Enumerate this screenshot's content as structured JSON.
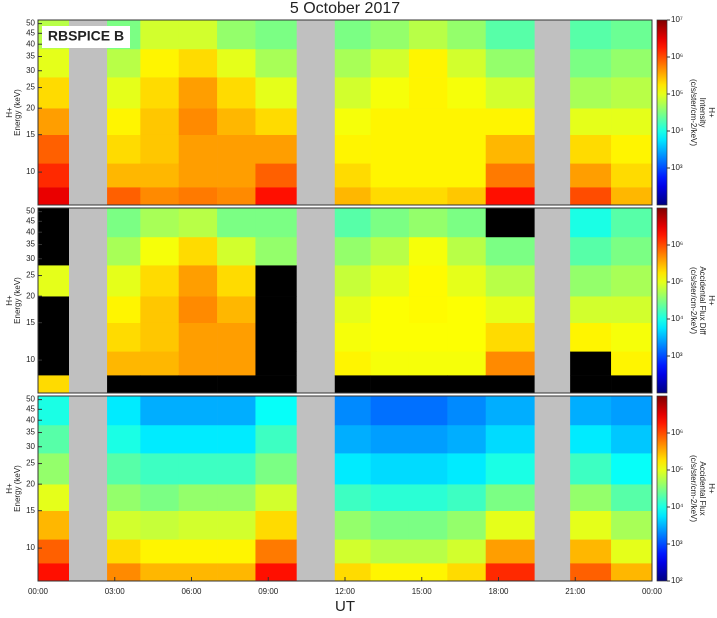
{
  "title": "5 October 2017",
  "label": "RBSPICE B",
  "chart_data": [
    {
      "type": "heatmap",
      "x": [
        0,
        1.2,
        2.7,
        4,
        5.5,
        7,
        8.5,
        10.1,
        11.6,
        13,
        14.5,
        16,
        17.5,
        19.4,
        20.8,
        22.4,
        24
      ],
      "y": [
        7,
        8.5,
        11,
        15,
        20,
        28,
        38,
        52
      ],
      "values": [
        [
          3000000.0,
          1500000.0,
          800000.0,
          400000.0,
          200000.0,
          100000.0,
          60000.0
        ],
        [
          null,
          null,
          null,
          null,
          null,
          null,
          null
        ],
        [
          800000.0,
          300000.0,
          200000.0,
          150000.0,
          100000.0,
          60000.0,
          30000.0
        ],
        [
          500000.0,
          300000.0,
          250000.0,
          250000.0,
          200000.0,
          150000.0,
          80000.0
        ],
        [
          600000.0,
          400000.0,
          400000.0,
          500000.0,
          400000.0,
          200000.0,
          80000.0
        ],
        [
          500000.0,
          400000.0,
          400000.0,
          300000.0,
          200000.0,
          100000.0,
          40000.0
        ],
        [
          2000000.0,
          800000.0,
          400000.0,
          200000.0,
          100000.0,
          50000.0,
          30000.0
        ],
        [
          null,
          null,
          null,
          null,
          null,
          null,
          null
        ],
        [
          300000.0,
          200000.0,
          150000.0,
          120000.0,
          80000.0,
          50000.0,
          30000.0
        ],
        [
          200000.0,
          150000.0,
          150000.0,
          150000.0,
          120000.0,
          80000.0,
          40000.0
        ],
        [
          200000.0,
          150000.0,
          150000.0,
          150000.0,
          150000.0,
          150000.0,
          60000.0
        ],
        [
          250000.0,
          150000.0,
          150000.0,
          150000.0,
          120000.0,
          80000.0,
          40000.0
        ],
        [
          2000000.0,
          600000.0,
          300000.0,
          150000.0,
          80000.0,
          40000.0,
          20000.0
        ],
        [
          null,
          null,
          null,
          null,
          null,
          null,
          null
        ],
        [
          1000000.0,
          400000.0,
          200000.0,
          100000.0,
          50000.0,
          30000.0,
          20000.0
        ],
        [
          300000.0,
          200000.0,
          150000.0,
          100000.0,
          60000.0,
          40000.0,
          25000.0
        ]
      ],
      "xlim": [
        0,
        24
      ],
      "ylim": [
        7,
        52
      ],
      "ylog": true,
      "yticks": [
        10,
        15,
        20,
        25,
        30,
        35,
        40,
        45,
        50
      ],
      "clim": [
        100,
        10000000
      ],
      "clog": true,
      "cticks": [
        {
          "value": 1000,
          "label": "10³"
        },
        {
          "value": 10000,
          "label": "10⁴"
        },
        {
          "value": 100000,
          "label": "10⁵"
        },
        {
          "value": 1000000,
          "label": "10⁶"
        },
        {
          "value": 10000000,
          "label": "10⁷"
        }
      ],
      "ylabel": [
        "H+",
        "Energy (keV)"
      ],
      "clabel": [
        "H+",
        "Intensity",
        "(c/s/ster/cm-2/keV)"
      ]
    },
    {
      "type": "heatmap",
      "x": [
        0,
        1.2,
        2.7,
        4,
        5.5,
        7,
        8.5,
        10.1,
        11.6,
        13,
        14.5,
        16,
        17.5,
        19.4,
        20.8,
        22.4,
        24
      ],
      "y": [
        7,
        8.5,
        11,
        15,
        20,
        28,
        38,
        52
      ],
      "values": [
        [
          200000.0,
          50,
          50,
          50,
          100000.0,
          50,
          50
        ],
        [
          null,
          null,
          null,
          null,
          null,
          null,
          null
        ],
        [
          50,
          300000.0,
          200000.0,
          150000.0,
          100000.0,
          50000.0,
          30000.0
        ],
        [
          50,
          300000.0,
          250000.0,
          250000.0,
          200000.0,
          120000.0,
          50000.0
        ],
        [
          50,
          400000.0,
          400000.0,
          500000.0,
          400000.0,
          200000.0,
          60000.0
        ],
        [
          50,
          400000.0,
          400000.0,
          300000.0,
          200000.0,
          80000.0,
          30000.0
        ],
        [
          50,
          50,
          50,
          50,
          50,
          40000.0,
          30000.0
        ],
        [
          null,
          null,
          null,
          null,
          null,
          null,
          null
        ],
        [
          50,
          150000.0,
          120000.0,
          100000.0,
          70000.0,
          40000.0,
          20000.0
        ],
        [
          50,
          120000.0,
          130000.0,
          130000.0,
          100000.0,
          60000.0,
          30000.0
        ],
        [
          50,
          120000.0,
          130000.0,
          140000.0,
          140000.0,
          120000.0,
          40000.0
        ],
        [
          50,
          120000.0,
          130000.0,
          130000.0,
          100000.0,
          60000.0,
          30000.0
        ],
        [
          50,
          500000.0,
          200000.0,
          100000.0,
          60000.0,
          30000.0,
          50
        ],
        [
          null,
          null,
          null,
          null,
          null,
          null,
          null
        ],
        [
          50,
          50,
          150000.0,
          80000.0,
          40000.0,
          20000.0,
          10000.0
        ],
        [
          50,
          150000.0,
          120000.0,
          80000.0,
          50000.0,
          30000.0,
          20000.0
        ]
      ],
      "xlim": [
        0,
        24
      ],
      "ylim": [
        7,
        52
      ],
      "ylog": true,
      "yticks": [
        10,
        15,
        20,
        25,
        30,
        35,
        40,
        45,
        50
      ],
      "clim": [
        100,
        10000000
      ],
      "clog": true,
      "cticks": [
        {
          "value": 1000,
          "label": "10³"
        },
        {
          "value": 10000,
          "label": "10⁴"
        },
        {
          "value": 100000,
          "label": "10⁵"
        },
        {
          "value": 1000000,
          "label": "10⁶"
        }
      ],
      "ylabel": [
        "H+",
        "Energy (keV)"
      ],
      "clabel": [
        "H+",
        "Accidental Flux Diff",
        "(c/s/ster/cm-2/keV)"
      ]
    },
    {
      "type": "heatmap",
      "x": [
        0,
        1.2,
        2.7,
        4,
        5.5,
        7,
        8.5,
        10.1,
        11.6,
        13,
        14.5,
        16,
        17.5,
        19.4,
        20.8,
        22.4,
        24
      ],
      "y": [
        7,
        8.5,
        11,
        15,
        20,
        28,
        38,
        52
      ],
      "values": [
        [
          2000000.0,
          800000.0,
          300000.0,
          100000.0,
          40000.0,
          20000.0,
          10000.0
        ],
        [
          null,
          null,
          null,
          null,
          null,
          null,
          null
        ],
        [
          500000.0,
          200000.0,
          80000.0,
          40000.0,
          20000.0,
          10000.0,
          6000.0
        ],
        [
          300000.0,
          150000.0,
          70000.0,
          30000.0,
          15000.0,
          6000.0,
          3000.0
        ],
        [
          300000.0,
          150000.0,
          80000.0,
          40000.0,
          15000.0,
          6000.0,
          3000.0
        ],
        [
          300000.0,
          150000.0,
          80000.0,
          40000.0,
          15000.0,
          6000.0,
          3000.0
        ],
        [
          2000000.0,
          600000.0,
          200000.0,
          80000.0,
          30000.0,
          15000.0,
          8000.0
        ],
        [
          null,
          null,
          null,
          null,
          null,
          null,
          null
        ],
        [
          200000.0,
          80000.0,
          40000.0,
          15000.0,
          6000.0,
          3000.0,
          2000.0
        ],
        [
          150000.0,
          60000.0,
          30000.0,
          12000.0,
          5000.0,
          2500.0,
          1500.0
        ],
        [
          150000.0,
          60000.0,
          30000.0,
          12000.0,
          5000.0,
          2500.0,
          1500.0
        ],
        [
          200000.0,
          80000.0,
          40000.0,
          15000.0,
          6000.0,
          3000.0,
          2000.0
        ],
        [
          1500000.0,
          400000.0,
          100000.0,
          30000.0,
          10000.0,
          5000.0,
          3000.0
        ],
        [
          null,
          null,
          null,
          null,
          null,
          null,
          null
        ],
        [
          800000.0,
          300000.0,
          100000.0,
          40000.0,
          15000.0,
          6000.0,
          3000.0
        ],
        [
          300000.0,
          100000.0,
          50000.0,
          20000.0,
          8000.0,
          4000.0,
          2500.0
        ]
      ],
      "xlim": [
        0,
        24
      ],
      "ylim": [
        7,
        52
      ],
      "ylog": true,
      "yticks": [
        10,
        15,
        20,
        25,
        30,
        35,
        40,
        45,
        50
      ],
      "xticks": [
        {
          "value": 0,
          "label": "00:00"
        },
        {
          "value": 3,
          "label": "03:00"
        },
        {
          "value": 6,
          "label": "06:00"
        },
        {
          "value": 9,
          "label": "09:00"
        },
        {
          "value": 12,
          "label": "12:00"
        },
        {
          "value": 15,
          "label": "15:00"
        },
        {
          "value": 18,
          "label": "18:00"
        },
        {
          "value": 21,
          "label": "21:00"
        },
        {
          "value": 24,
          "label": "00:00"
        }
      ],
      "xlabel": "UT",
      "clim": [
        100,
        10000000
      ],
      "clog": true,
      "cticks": [
        {
          "value": 100,
          "label": "10²"
        },
        {
          "value": 1000,
          "label": "10³"
        },
        {
          "value": 10000,
          "label": "10⁴"
        },
        {
          "value": 100000,
          "label": "10⁵"
        },
        {
          "value": 1000000,
          "label": "10⁶"
        }
      ],
      "ylabel": [
        "H+",
        "Energy (keV)"
      ],
      "clabel": [
        "H+",
        "Accidental Flux",
        "(c/s/ster/cm-2/keV)"
      ]
    }
  ]
}
